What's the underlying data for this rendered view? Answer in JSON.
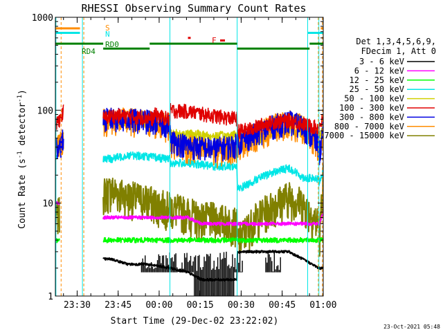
{
  "chart_data": {
    "type": "line",
    "title": "RHESSI Observing Summary Count Rates",
    "xlabel": "Start Time (29-Dec-02 23:22:02)",
    "ylabel_main": "Count Rate (s",
    "ylabel_sup1": "-1",
    "ylabel_mid": " detector",
    "ylabel_sup2": "-1",
    "ylabel_end": ")",
    "y_scale": "log",
    "ylim": [
      1,
      1000
    ],
    "x_range_minutes": [
      -58.5,
      39.5
    ],
    "x_reference": "23:22:02",
    "x_ticks": [
      {
        "label": "23:30",
        "minutes": -30
      },
      {
        "label": "23:45",
        "minutes": -15
      },
      {
        "label": "00:00",
        "minutes": 0
      },
      {
        "label": "00:15",
        "minutes": 15
      },
      {
        "label": "00:30",
        "minutes": 30
      },
      {
        "label": "00:45",
        "minutes": 45
      },
      {
        "label": "01:00",
        "minutes": 60
      }
    ],
    "y_ticks": [
      {
        "label": "1",
        "value": 1
      },
      {
        "label": "10",
        "value": 10
      },
      {
        "label": "100",
        "value": 100
      },
      {
        "label": "1000",
        "value": 1000
      }
    ],
    "legend_header": [
      "Det 1,3,4,5,6,9,",
      "FDecim 1, Att 0"
    ],
    "legend_placement": "right",
    "series": [
      {
        "name": "3 - 6 keV",
        "color": "#000000"
      },
      {
        "name": "6 - 12 keV",
        "color": "#ff00ff"
      },
      {
        "name": "12 - 25 keV",
        "color": "#00ff00"
      },
      {
        "name": "25 - 50 keV",
        "color": "#00e6e6"
      },
      {
        "name": "50 - 100 keV",
        "color": "#d0d000"
      },
      {
        "name": "100 - 300 keV",
        "color": "#e00000"
      },
      {
        "name": "300 - 800 keV",
        "color": "#0000e0"
      },
      {
        "name": "800 - 7000 keV",
        "color": "#ff8c00"
      },
      {
        "name": "7000 - 15000 keV",
        "color": "#808000"
      }
    ],
    "flag_labels": {
      "saa": "S",
      "night": "N",
      "flare": "F",
      "rd0": "RD0",
      "rd4": "RD4"
    },
    "flag_colors": {
      "saa": "#ff8c00",
      "night": "#00e6e6",
      "flare": "#e00000",
      "rd": "#008000"
    }
  },
  "footer_timestamp": "23-Oct-2021 05:48"
}
